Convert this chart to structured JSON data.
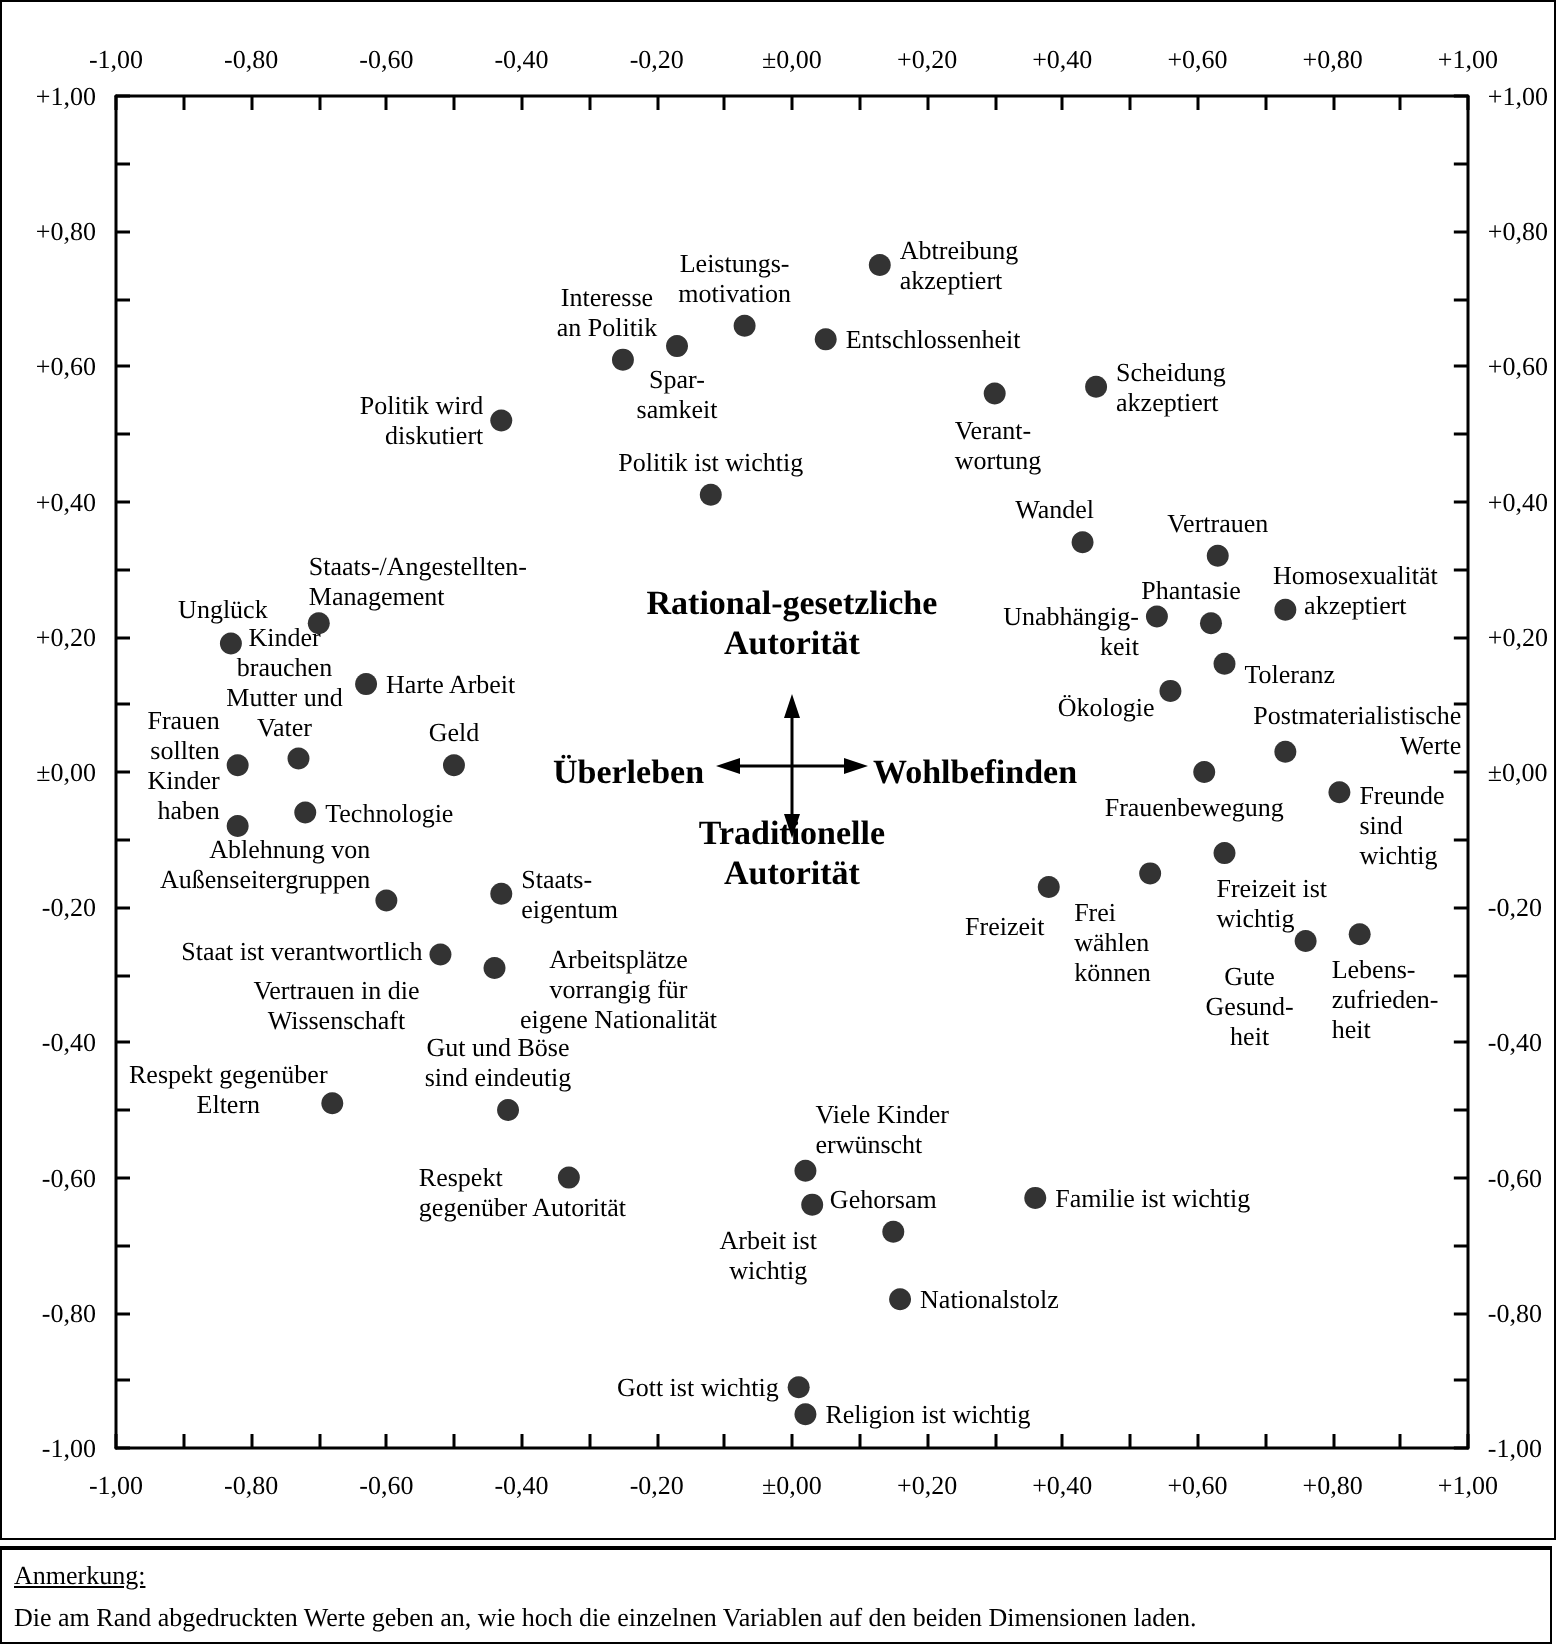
{
  "chart_data": {
    "type": "scatter",
    "marker": "circle",
    "color": "#000000",
    "x": [
      -0.83,
      -0.7,
      -0.73,
      -0.63,
      -0.82,
      -0.5,
      -0.72,
      -0.6,
      -0.43,
      -0.52,
      -0.44,
      -0.68,
      -0.42,
      -0.33,
      -0.43,
      -0.25,
      -0.17,
      -0.07,
      -0.12,
      0.13,
      0.05,
      0.3,
      0.45,
      0.43,
      0.63,
      0.54,
      0.62,
      0.73,
      0.64,
      0.56,
      0.73,
      0.61,
      0.81,
      0.38,
      0.53,
      0.64,
      0.76,
      0.84,
      0.02,
      0.03,
      0.15,
      0.36,
      0.16,
      0.01,
      0.02,
      -0.82
    ],
    "values": [
      0.19,
      0.22,
      0.02,
      0.13,
      0.01,
      0.01,
      -0.06,
      -0.19,
      -0.18,
      -0.27,
      -0.29,
      -0.49,
      -0.5,
      -0.6,
      0.52,
      0.61,
      0.63,
      0.66,
      0.41,
      0.75,
      0.64,
      0.56,
      0.57,
      0.34,
      0.32,
      0.23,
      0.22,
      0.24,
      0.16,
      0.12,
      0.03,
      0.0,
      -0.03,
      -0.17,
      -0.15,
      -0.12,
      -0.25,
      -0.24,
      -0.59,
      -0.64,
      -0.68,
      -0.63,
      -0.78,
      -0.91,
      -0.95,
      -0.08
    ],
    "xlim": [
      -1,
      1
    ],
    "ylim": [
      -1,
      1
    ],
    "x2lim": [
      -1,
      1
    ],
    "y2lim": [
      -1,
      1
    ],
    "xticks": [
      {
        "value": -1,
        "label": "-1,00"
      },
      {
        "value": -0.9,
        "label": null
      },
      {
        "value": -0.8,
        "label": "-0,80"
      },
      {
        "value": -0.7,
        "label": null
      },
      {
        "value": -0.6,
        "label": "-0,60"
      },
      {
        "value": -0.5,
        "label": null
      },
      {
        "value": -0.4,
        "label": "-0,40"
      },
      {
        "value": -0.3,
        "label": null
      },
      {
        "value": -0.2,
        "label": "-0,20"
      },
      {
        "value": -0.1,
        "label": null
      },
      {
        "value": 0,
        "label": "±0,00"
      },
      {
        "value": 0.1,
        "label": null
      },
      {
        "value": 0.2,
        "label": "+0,20"
      },
      {
        "value": 0.3,
        "label": null
      },
      {
        "value": 0.4,
        "label": "+0,40"
      },
      {
        "value": 0.5,
        "label": null
      },
      {
        "value": 0.6,
        "label": "+0,60"
      },
      {
        "value": 0.7,
        "label": null
      },
      {
        "value": 0.8,
        "label": "+0,80"
      },
      {
        "value": 0.9,
        "label": null
      },
      {
        "value": 1,
        "label": "+1,00"
      }
    ],
    "x2ticks": [
      {
        "value": -1,
        "label": "-1,00"
      },
      {
        "value": -0.9,
        "label": null
      },
      {
        "value": -0.8,
        "label": "-0,80"
      },
      {
        "value": -0.7,
        "label": null
      },
      {
        "value": -0.6,
        "label": "-0,60"
      },
      {
        "value": -0.5,
        "label": null
      },
      {
        "value": -0.4,
        "label": "-0,40"
      },
      {
        "value": -0.3,
        "label": null
      },
      {
        "value": -0.2,
        "label": "-0,20"
      },
      {
        "value": -0.1,
        "label": null
      },
      {
        "value": 0,
        "label": "±0,00"
      },
      {
        "value": 0.1,
        "label": null
      },
      {
        "value": 0.2,
        "label": "+0,20"
      },
      {
        "value": 0.3,
        "label": null
      },
      {
        "value": 0.4,
        "label": "+0,40"
      },
      {
        "value": 0.5,
        "label": null
      },
      {
        "value": 0.6,
        "label": "+0,60"
      },
      {
        "value": 0.7,
        "label": null
      },
      {
        "value": 0.8,
        "label": "+0,80"
      },
      {
        "value": 0.9,
        "label": null
      },
      {
        "value": 1,
        "label": "+1,00"
      }
    ],
    "yticks": [
      {
        "value": -1,
        "label": "-1,00"
      },
      {
        "value": -0.9,
        "label": null
      },
      {
        "value": -0.8,
        "label": "-0,80"
      },
      {
        "value": -0.7,
        "label": null
      },
      {
        "value": -0.6,
        "label": "-0,60"
      },
      {
        "value": -0.5,
        "label": null
      },
      {
        "value": -0.4,
        "label": "-0,40"
      },
      {
        "value": -0.3,
        "label": null
      },
      {
        "value": -0.2,
        "label": "-0,20"
      },
      {
        "value": -0.1,
        "label": null
      },
      {
        "value": 0,
        "label": "±0,00"
      },
      {
        "value": 0.1,
        "label": null
      },
      {
        "value": 0.2,
        "label": "+0,20"
      },
      {
        "value": 0.3,
        "label": null
      },
      {
        "value": 0.4,
        "label": "+0,40"
      },
      {
        "value": 0.5,
        "label": null
      },
      {
        "value": 0.6,
        "label": "+0,60"
      },
      {
        "value": 0.7,
        "label": null
      },
      {
        "value": 0.8,
        "label": "+0,80"
      },
      {
        "value": 0.9,
        "label": null
      },
      {
        "value": 1,
        "label": "+1,00"
      }
    ],
    "y2ticks": [
      {
        "value": -1,
        "label": "-1,00"
      },
      {
        "value": -0.9,
        "label": null
      },
      {
        "value": -0.8,
        "label": "-0,80"
      },
      {
        "value": -0.7,
        "label": null
      },
      {
        "value": -0.6,
        "label": "-0,60"
      },
      {
        "value": -0.5,
        "label": null
      },
      {
        "value": -0.4,
        "label": "-0,40"
      },
      {
        "value": -0.3,
        "label": null
      },
      {
        "value": -0.2,
        "label": "-0,20"
      },
      {
        "value": -0.1,
        "label": null
      },
      {
        "value": 0,
        "label": "±0,00"
      },
      {
        "value": 0.1,
        "label": null
      },
      {
        "value": 0.2,
        "label": "+0,20"
      },
      {
        "value": 0.3,
        "label": null
      },
      {
        "value": 0.4,
        "label": "+0,40"
      },
      {
        "value": 0.5,
        "label": null
      },
      {
        "value": 0.6,
        "label": "+0,60"
      },
      {
        "value": 0.7,
        "label": null
      },
      {
        "value": 0.8,
        "label": "+0,80"
      },
      {
        "value": 0.9,
        "label": null
      },
      {
        "value": 1,
        "label": "+1,00"
      }
    ],
    "annotations": [
      {
        "text": "Unglück",
        "x": -0.83,
        "y": 0.19
      },
      {
        "text": "Staats-/Angestellten-\nManagement",
        "x": -0.7,
        "y": 0.22
      },
      {
        "text": "Kinder\nbrauchen\nMutter und\nVater",
        "x": -0.73,
        "y": 0.02
      },
      {
        "text": "Harte Arbeit",
        "x": -0.63,
        "y": 0.13
      },
      {
        "text": "Frauen\nsollten\nKinder\nhaben",
        "x": -0.82,
        "y": 0.01
      },
      {
        "text": "Geld",
        "x": -0.5,
        "y": 0.01
      },
      {
        "text": "Technologie",
        "x": -0.72,
        "y": -0.06
      },
      {
        "text": "Ablehnung von\nAußenseitergruppen",
        "x": -0.6,
        "y": -0.19
      },
      {
        "text": "Staats-\neigentum",
        "x": -0.43,
        "y": -0.18
      },
      {
        "text": "Staat ist verantwortlich",
        "x": -0.52,
        "y": -0.27
      },
      {
        "text": "Vertrauen in die\nWissenschaft",
        "x": -0.52,
        "y": -0.27
      },
      {
        "text": "Arbeitsplätze\nvorrangig für\neigene Nationalität",
        "x": -0.44,
        "y": -0.29
      },
      {
        "text": "Respekt gegenüber\nEltern",
        "x": -0.68,
        "y": -0.49
      },
      {
        "text": "Gut und Böse\nsind eindeutig",
        "x": -0.42,
        "y": -0.5
      },
      {
        "text": "Respekt\ngegenüber Autorität",
        "x": -0.33,
        "y": -0.6
      },
      {
        "text": "Politik wird\ndiskutiert",
        "x": -0.43,
        "y": 0.52
      },
      {
        "text": "Interesse\nan Politik",
        "x": -0.25,
        "y": 0.61
      },
      {
        "text": "Spar-\nsamkeit",
        "x": -0.17,
        "y": 0.63
      },
      {
        "text": "Leistungs-\nmotivation",
        "x": -0.07,
        "y": 0.66
      },
      {
        "text": "Politik ist wichtig",
        "x": -0.12,
        "y": 0.41
      },
      {
        "text": "Abtreibung\nakzeptiert",
        "x": 0.13,
        "y": 0.75
      },
      {
        "text": "Entschlossenheit",
        "x": 0.05,
        "y": 0.64
      },
      {
        "text": "Verant-\nwortung",
        "x": 0.3,
        "y": 0.56
      },
      {
        "text": "Scheidung\nakzeptiert",
        "x": 0.45,
        "y": 0.57
      },
      {
        "text": "Wandel",
        "x": 0.43,
        "y": 0.34
      },
      {
        "text": "Vertrauen",
        "x": 0.63,
        "y": 0.32
      },
      {
        "text": "Unabhängig-\nkeit",
        "x": 0.54,
        "y": 0.23
      },
      {
        "text": "Phantasie",
        "x": 0.62,
        "y": 0.22
      },
      {
        "text": "Homosexualität\nakzeptiert",
        "x": 0.73,
        "y": 0.24
      },
      {
        "text": "Toleranz",
        "x": 0.64,
        "y": 0.16
      },
      {
        "text": "Ökologie",
        "x": 0.56,
        "y": 0.12
      },
      {
        "text": "Postmaterialistische\nWerte",
        "x": 0.73,
        "y": 0.03
      },
      {
        "text": "Frauenbewegung",
        "x": 0.61,
        "y": 0.0
      },
      {
        "text": "Freunde\nsind\nwichtig",
        "x": 0.81,
        "y": -0.03
      },
      {
        "text": "Freizeit",
        "x": 0.38,
        "y": -0.17
      },
      {
        "text": "Frei\nwählen\nkönnen",
        "x": 0.53,
        "y": -0.15
      },
      {
        "text": "Freizeit ist\nwichtig",
        "x": 0.64,
        "y": -0.12
      },
      {
        "text": "Gute\nGesund-\nheit",
        "x": 0.76,
        "y": -0.25
      },
      {
        "text": "Lebens-\nzufrieden-\nheit",
        "x": 0.84,
        "y": -0.24
      },
      {
        "text": "Viele Kinder\nerwünscht",
        "x": 0.02,
        "y": -0.59
      },
      {
        "text": "Arbeit ist\nwichtig",
        "x": 0.03,
        "y": -0.64
      },
      {
        "text": "Gehorsam",
        "x": 0.15,
        "y": -0.68
      },
      {
        "text": "Familie ist wichtig",
        "x": 0.36,
        "y": -0.63
      },
      {
        "text": "Nationalstolz",
        "x": 0.16,
        "y": -0.78
      },
      {
        "text": "Gott ist wichtig",
        "x": 0.01,
        "y": -0.91
      },
      {
        "text": "Religion ist wichtig",
        "x": 0.02,
        "y": -0.95
      },
      "Rational-gesetzliche\nAutorität",
      "Überleben",
      "Wohlbefinden",
      "Traditionelle\nAutorität",
      "Anmerkung:",
      "Die am Rand abgedruckten Werte geben an, wie hoch die einzelnen Variablen auf den beiden  Dimensionen laden."
    ]
  }
}
